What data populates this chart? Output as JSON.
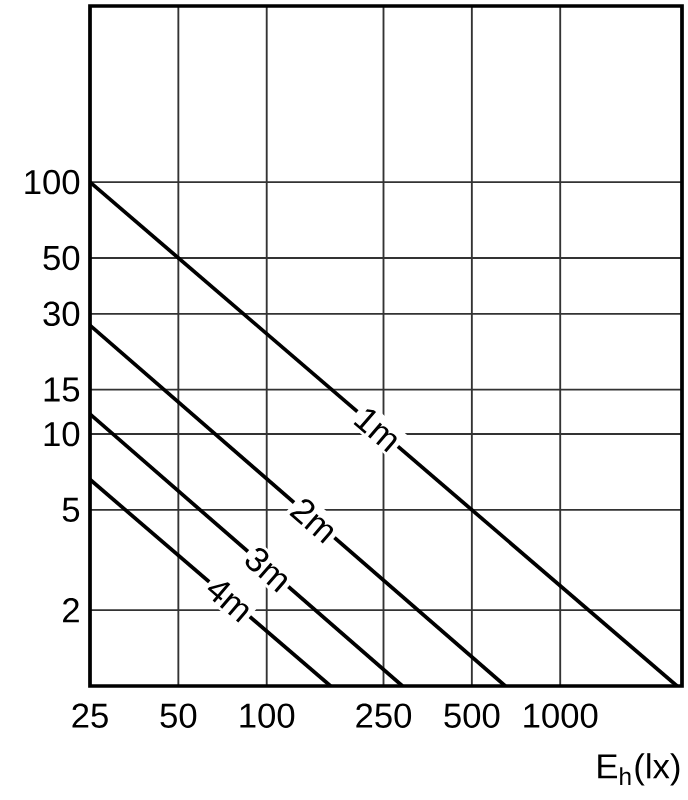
{
  "chart_data": {
    "type": "line",
    "xlabel": "E$_{h}$(lx)",
    "log": "xy",
    "grid": true,
    "xlim": [
      25,
      2600
    ],
    "ylim": [
      1,
      500
    ],
    "xticks": [
      25,
      50,
      100,
      250,
      500,
      1000
    ],
    "yticks": [
      2,
      5,
      10,
      15,
      30,
      50,
      100
    ],
    "series": [
      {
        "name": "1m",
        "color": "#000000",
        "x": [
          25,
          2500
        ],
        "values": [
          100,
          1
        ]
      },
      {
        "name": "2m",
        "color": "#000000",
        "x": [
          25,
          650
        ],
        "values": [
          27,
          1
        ]
      },
      {
        "name": "3m",
        "color": "#000000",
        "x": [
          25,
          290
        ],
        "values": [
          12,
          1
        ]
      },
      {
        "name": "4m",
        "color": "#000000",
        "x": [
          25,
          165
        ],
        "values": [
          6.6,
          1
        ]
      }
    ]
  }
}
